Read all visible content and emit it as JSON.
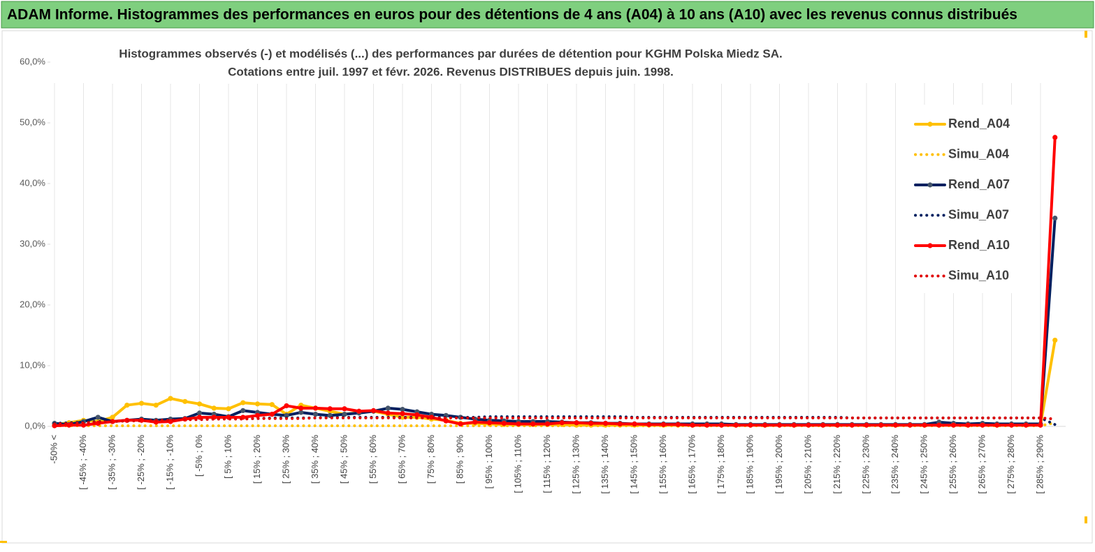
{
  "header": {
    "title": "ADAM Informe. Histogrammes des performances en euros pour des détentions de 4 ans (A04) à 10 ans (A10) avec les revenus connus distribués"
  },
  "chart_data": {
    "type": "line",
    "subtitle": [
      "Histogrammes observés (-) et modélisés (...) des performances par durées de détention pour KGHM Polska Miedz SA.",
      "Cotations entre juil. 1997 et févr. 2026. Revenus DISTRIBUES depuis juin. 1998."
    ],
    "categories": [
      "-50% <",
      null,
      "[ -45% ; -40%",
      null,
      "[ -35% ; -30%",
      null,
      "[ -25% ; -20%",
      null,
      "[ -15% ; -10%",
      null,
      "[ -5% ; 0%",
      null,
      "[ 5% ; 10%",
      null,
      "[ 15% ; 20%",
      null,
      "[ 25% ; 30%",
      null,
      "[ 35% ; 40%",
      null,
      "[ 45% ; 50%",
      null,
      "[ 55% ; 60%",
      null,
      "[ 65% ; 70%",
      null,
      "[ 75% ; 80%",
      null,
      "[ 85% ; 90%",
      null,
      "[ 95% ; 100%",
      null,
      "[ 105% ; 110%",
      null,
      "[ 115% ; 120%",
      null,
      "[ 125% ; 130%",
      null,
      "[ 135% ; 140%",
      null,
      "[ 145% ; 150%",
      null,
      "[ 155% ; 160%",
      null,
      "[ 165% ; 170%",
      null,
      "[ 175% ; 180%",
      null,
      "[ 185% ; 190%",
      null,
      "[ 195% ; 200%",
      null,
      "[ 205% ; 210%",
      null,
      "[ 215% ; 220%",
      null,
      "[ 225% ; 230%",
      null,
      "[ 235% ; 240%",
      null,
      "[ 245% ; 250%",
      null,
      "[ 255% ; 260%",
      null,
      "[ 265% ; 270%",
      null,
      "[ 275% ; 280%",
      null,
      "[ 285% ; 290%",
      null
    ],
    "ylim": [
      0,
      60
    ],
    "yticks": [
      {
        "value": 0,
        "label": "0,0%"
      },
      {
        "value": 10,
        "label": "10,0%"
      },
      {
        "value": 20,
        "label": "20,0%"
      },
      {
        "value": 30,
        "label": "30,0%"
      },
      {
        "value": 40,
        "label": "40,0%"
      },
      {
        "value": 50,
        "label": "50,0%"
      },
      {
        "value": 60,
        "label": "60,0%"
      }
    ],
    "grid": "x",
    "legend": "right",
    "series": [
      {
        "name": "Rend_A04",
        "color": "#ffc000",
        "line_style": "solid",
        "marker": true,
        "values": [
          0.3,
          0.6,
          1.0,
          0.8,
          1.5,
          3.5,
          3.8,
          3.5,
          4.6,
          4.1,
          3.7,
          3.0,
          2.9,
          3.9,
          3.7,
          3.6,
          2.0,
          3.5,
          3.0,
          2.5,
          2.0,
          2.3,
          2.5,
          2.0,
          1.5,
          1.5,
          1.2,
          1.0,
          0.5,
          0.5,
          0.4,
          0.3,
          0.3,
          0.3,
          0.3,
          0.3,
          0.2,
          0.2,
          0.2,
          0.2,
          0.2,
          0.2,
          0.2,
          0.2,
          0.2,
          0.2,
          0.2,
          0.2,
          0.2,
          0.2,
          0.2,
          0.2,
          0.2,
          0.2,
          0.2,
          0.2,
          0.2,
          0.2,
          0.2,
          0.2,
          0.2,
          0.2,
          0.2,
          0.2,
          0.2,
          0.2,
          0.2,
          0.2,
          0.2,
          14.2
        ]
      },
      {
        "name": "Simu_A04",
        "color": "#ffc000",
        "line_style": "dotted",
        "marker": false,
        "values": [
          0.1,
          0.1,
          0.1,
          0.1,
          0.1,
          0.1,
          0.1,
          0.1,
          0.1,
          0.1,
          0.1,
          0.1,
          0.1,
          0.1,
          0.1,
          0.1,
          0.1,
          0.1,
          0.1,
          0.1,
          0.1,
          0.1,
          0.1,
          0.1,
          0.1,
          0.1,
          0.1,
          0.1,
          0.1,
          0.1,
          0.1,
          0.1,
          0.1,
          0.1,
          0.1,
          0.1,
          0.1,
          0.1,
          0.1,
          0.1,
          0.1,
          0.1,
          0.1,
          0.1,
          0.1,
          0.1,
          0.1,
          0.1,
          0.1,
          0.1,
          0.1,
          0.1,
          0.1,
          0.1,
          0.1,
          0.1,
          0.1,
          0.1,
          0.1,
          0.1,
          0.1,
          0.1,
          0.1,
          0.1,
          0.1,
          0.1,
          0.1,
          0.1,
          0.1,
          0.6
        ]
      },
      {
        "name": "Rend_A07",
        "color": "#002060",
        "line_style": "solid",
        "marker": true,
        "values": [
          0.5,
          0.3,
          0.8,
          1.5,
          0.8,
          1.0,
          1.2,
          1.0,
          1.2,
          1.3,
          2.2,
          2.0,
          1.6,
          2.6,
          2.3,
          2.0,
          1.8,
          2.3,
          2.0,
          1.8,
          2.0,
          2.2,
          2.5,
          3.0,
          2.8,
          2.4,
          2.0,
          1.8,
          1.5,
          1.2,
          1.0,
          0.9,
          0.8,
          0.8,
          0.8,
          0.7,
          0.6,
          0.6,
          0.5,
          0.5,
          0.4,
          0.4,
          0.4,
          0.4,
          0.4,
          0.4,
          0.4,
          0.3,
          0.3,
          0.3,
          0.3,
          0.3,
          0.3,
          0.3,
          0.3,
          0.3,
          0.3,
          0.3,
          0.3,
          0.3,
          0.3,
          0.7,
          0.5,
          0.4,
          0.5,
          0.4,
          0.4,
          0.4,
          0.4,
          34.3
        ]
      },
      {
        "name": "Simu_A07",
        "color": "#002060",
        "line_style": "dotted",
        "marker": false,
        "values": [
          0.5,
          0.6,
          0.7,
          0.8,
          0.8,
          0.9,
          1.0,
          1.0,
          1.1,
          1.1,
          1.2,
          1.2,
          1.3,
          1.3,
          1.3,
          1.4,
          1.4,
          1.4,
          1.4,
          1.5,
          1.5,
          1.5,
          1.5,
          1.5,
          1.5,
          1.5,
          1.5,
          1.5,
          1.5,
          1.5,
          1.6,
          1.6,
          1.6,
          1.6,
          1.6,
          1.6,
          1.6,
          1.6,
          1.6,
          1.6,
          1.5,
          1.5,
          1.5,
          1.5,
          1.5,
          1.5,
          1.5,
          1.5,
          1.5,
          1.5,
          1.5,
          1.5,
          1.5,
          1.5,
          1.5,
          1.4,
          1.4,
          1.4,
          1.4,
          1.4,
          1.4,
          1.4,
          1.4,
          1.4,
          1.4,
          1.4,
          1.4,
          1.4,
          1.4,
          0.3
        ]
      },
      {
        "name": "Rend_A10",
        "color": "#ff0000",
        "line_style": "solid",
        "marker": true,
        "values": [
          0.1,
          0.2,
          0.2,
          0.5,
          0.8,
          1.0,
          1.0,
          0.7,
          0.8,
          1.2,
          1.5,
          1.5,
          1.5,
          1.5,
          1.8,
          2.0,
          3.4,
          3.0,
          3.0,
          2.9,
          2.9,
          2.5,
          2.6,
          2.2,
          2.1,
          1.9,
          1.5,
          0.9,
          0.4,
          0.7,
          0.6,
          0.5,
          0.4,
          0.4,
          0.4,
          0.6,
          0.6,
          0.5,
          0.5,
          0.4,
          0.4,
          0.3,
          0.3,
          0.3,
          0.2,
          0.2,
          0.2,
          0.2,
          0.2,
          0.2,
          0.2,
          0.2,
          0.2,
          0.2,
          0.2,
          0.2,
          0.2,
          0.2,
          0.2,
          0.2,
          0.2,
          0.2,
          0.2,
          0.2,
          0.2,
          0.2,
          0.2,
          0.2,
          0.2,
          47.6
        ]
      },
      {
        "name": "Simu_A10",
        "color": "#e00000",
        "line_style": "dotted",
        "marker": false,
        "values": [
          0.4,
          0.5,
          0.6,
          0.7,
          0.8,
          0.9,
          0.9,
          1.0,
          1.0,
          1.1,
          1.1,
          1.2,
          1.2,
          1.2,
          1.3,
          1.3,
          1.3,
          1.3,
          1.4,
          1.4,
          1.4,
          1.4,
          1.4,
          1.4,
          1.4,
          1.4,
          1.4,
          1.4,
          1.4,
          1.4,
          1.4,
          1.4,
          1.4,
          1.4,
          1.4,
          1.4,
          1.4,
          1.4,
          1.4,
          1.4,
          1.4,
          1.4,
          1.4,
          1.4,
          1.4,
          1.4,
          1.4,
          1.4,
          1.4,
          1.4,
          1.4,
          1.4,
          1.4,
          1.4,
          1.4,
          1.4,
          1.4,
          1.4,
          1.4,
          1.4,
          1.4,
          1.4,
          1.4,
          1.4,
          1.4,
          1.4,
          1.4,
          1.4,
          1.4,
          1.2
        ]
      }
    ]
  }
}
